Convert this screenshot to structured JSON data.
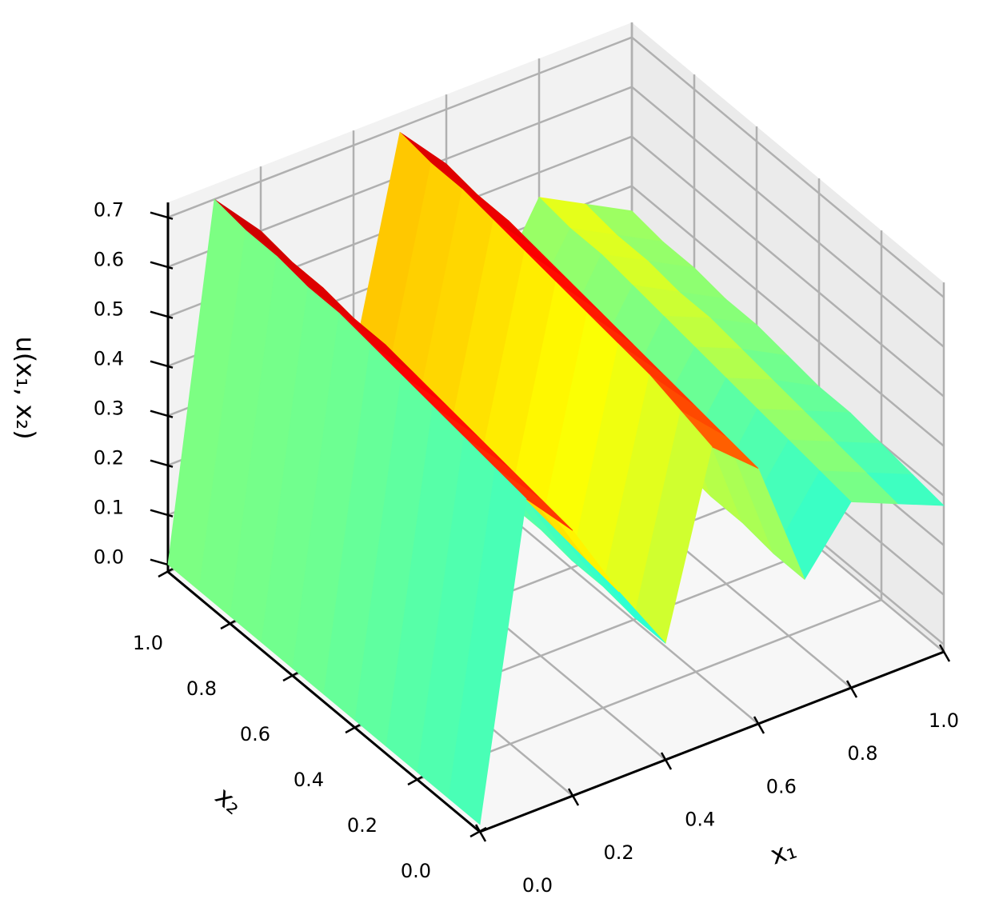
{
  "chart_data": {
    "type": "surface",
    "colormap": "jet",
    "grid": true,
    "xlabel": "x₁",
    "ylabel": "x₂",
    "zlabel": "u(x₁, x₂)",
    "x": [
      0,
      0.1,
      0.2,
      0.3,
      0.4,
      0.5,
      0.6,
      0.7,
      0.8,
      0.9,
      1.0
    ],
    "y": [
      0,
      0.1,
      0.2,
      0.3,
      0.4,
      0.5,
      0.6,
      0.7,
      0.8,
      0.9,
      1.0
    ],
    "z": [
      [
        0,
        0.62,
        0.52,
        0.36,
        0.22,
        0.58,
        0.5,
        0.24,
        0.36,
        0.32,
        0.28
      ],
      [
        0,
        0.63,
        0.53,
        0.37,
        0.22,
        0.6,
        0.51,
        0.24,
        0.37,
        0.33,
        0.29
      ],
      [
        0,
        0.64,
        0.54,
        0.38,
        0.23,
        0.62,
        0.52,
        0.25,
        0.38,
        0.34,
        0.3
      ],
      [
        0,
        0.65,
        0.55,
        0.39,
        0.23,
        0.63,
        0.53,
        0.25,
        0.39,
        0.35,
        0.31
      ],
      [
        0,
        0.66,
        0.56,
        0.4,
        0.24,
        0.64,
        0.54,
        0.26,
        0.4,
        0.36,
        0.31
      ],
      [
        0,
        0.67,
        0.57,
        0.41,
        0.24,
        0.65,
        0.55,
        0.27,
        0.41,
        0.37,
        0.32
      ],
      [
        0,
        0.68,
        0.58,
        0.42,
        0.25,
        0.66,
        0.56,
        0.27,
        0.42,
        0.38,
        0.33
      ],
      [
        0,
        0.68,
        0.58,
        0.42,
        0.25,
        0.67,
        0.57,
        0.28,
        0.43,
        0.38,
        0.33
      ],
      [
        0,
        0.69,
        0.59,
        0.43,
        0.26,
        0.68,
        0.58,
        0.28,
        0.44,
        0.39,
        0.34
      ],
      [
        0,
        0.69,
        0.59,
        0.43,
        0.26,
        0.68,
        0.58,
        0.29,
        0.44,
        0.39,
        0.34
      ],
      [
        0,
        0.7,
        0.6,
        0.44,
        0.27,
        0.69,
        0.59,
        0.29,
        0.45,
        0.4,
        0.35
      ]
    ],
    "xlim": [
      0,
      1
    ],
    "ylim": [
      0,
      1
    ],
    "zlim": [
      -0.015,
      0.73
    ],
    "cmap_range": [
      0,
      0.7
    ],
    "xticks": [
      {
        "value": 0,
        "label": "0.0"
      },
      {
        "value": 0.2,
        "label": "0.2"
      },
      {
        "value": 0.4,
        "label": "0.4"
      },
      {
        "value": 0.6,
        "label": "0.6"
      },
      {
        "value": 0.8,
        "label": "0.8"
      },
      {
        "value": 1,
        "label": "1.0"
      }
    ],
    "yticks": [
      {
        "value": 0,
        "label": "0.0"
      },
      {
        "value": 0.2,
        "label": "0.2"
      },
      {
        "value": 0.4,
        "label": "0.4"
      },
      {
        "value": 0.6,
        "label": "0.6"
      },
      {
        "value": 0.8,
        "label": "0.8"
      },
      {
        "value": 1,
        "label": "1.0"
      }
    ],
    "zticks": [
      {
        "value": 0,
        "label": "0.0"
      },
      0.1,
      0.2,
      0.3,
      0.4,
      0.5,
      0.6,
      0.7
    ]
  }
}
